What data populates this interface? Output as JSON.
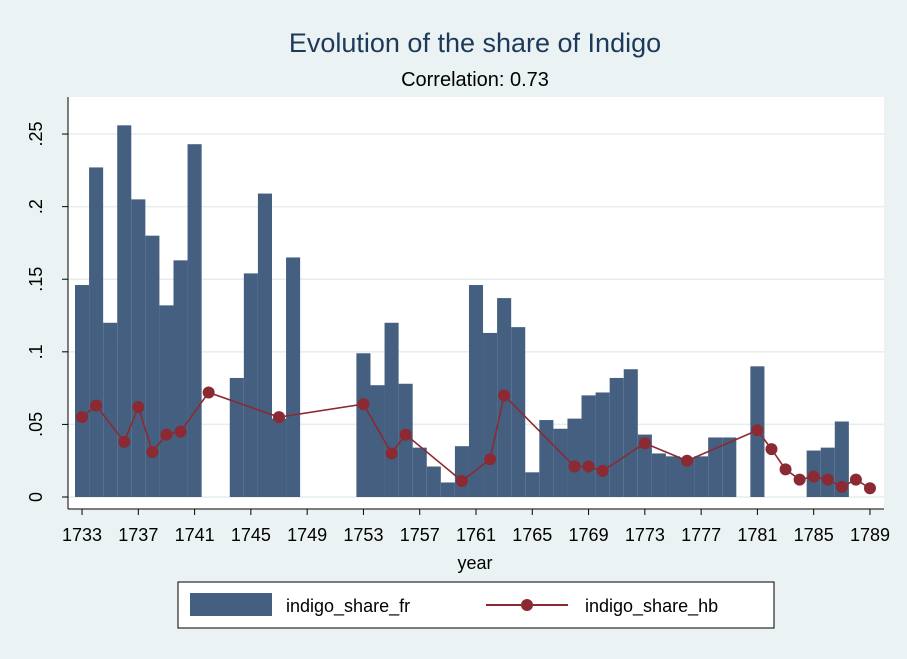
{
  "chart_data": {
    "type": "bar",
    "title": "Evolution of the share of Indigo",
    "subtitle": "Correlation: 0.73",
    "xlabel": "year",
    "ylabel": "",
    "xlim": [
      1732.5,
      1789.5
    ],
    "ylim": [
      0,
      0.27
    ],
    "x_ticks": [
      1733,
      1737,
      1741,
      1745,
      1749,
      1753,
      1757,
      1761,
      1765,
      1769,
      1773,
      1777,
      1781,
      1785,
      1789
    ],
    "x_tick_labels": [
      "1733",
      "1737",
      "1741",
      "1745",
      "1749",
      "1753",
      "1757",
      "1761",
      "1765",
      "1769",
      "1773",
      "1777",
      "1781",
      "1785",
      "1789"
    ],
    "y_ticks": [
      0,
      0.05,
      0.1,
      0.15,
      0.2,
      0.25
    ],
    "y_tick_labels": [
      "0",
      ".05",
      ".1",
      ".15",
      ".2",
      ".25"
    ],
    "grid": true,
    "legend_position": "bottom",
    "colors": {
      "bars": "#445f80",
      "line": "#8b2a32",
      "plot_bg": "#ffffff",
      "outer_bg": "#eaf2f3",
      "grid": "#e6eded",
      "title": "#1e3a5a"
    },
    "series": [
      {
        "name": "indigo_share_fr",
        "type": "bar",
        "points": [
          [
            1733,
            0.146
          ],
          [
            1734,
            0.227
          ],
          [
            1735,
            0.12
          ],
          [
            1736,
            0.256
          ],
          [
            1737,
            0.205
          ],
          [
            1738,
            0.18
          ],
          [
            1739,
            0.132
          ],
          [
            1740,
            0.163
          ],
          [
            1741,
            0.243
          ],
          [
            1744,
            0.082
          ],
          [
            1745,
            0.154
          ],
          [
            1746,
            0.209
          ],
          [
            1747,
            0.054
          ],
          [
            1748,
            0.165
          ],
          [
            1753,
            0.099
          ],
          [
            1754,
            0.077
          ],
          [
            1755,
            0.12
          ],
          [
            1756,
            0.078
          ],
          [
            1757,
            0.034
          ],
          [
            1758,
            0.021
          ],
          [
            1759,
            0.01
          ],
          [
            1760,
            0.035
          ],
          [
            1761,
            0.146
          ],
          [
            1762,
            0.113
          ],
          [
            1763,
            0.137
          ],
          [
            1764,
            0.117
          ],
          [
            1765,
            0.017
          ],
          [
            1766,
            0.053
          ],
          [
            1767,
            0.047
          ],
          [
            1768,
            0.054
          ],
          [
            1769,
            0.07
          ],
          [
            1770,
            0.072
          ],
          [
            1771,
            0.082
          ],
          [
            1772,
            0.088
          ],
          [
            1773,
            0.043
          ],
          [
            1774,
            0.03
          ],
          [
            1775,
            0.028
          ],
          [
            1776,
            0.027
          ],
          [
            1777,
            0.028
          ],
          [
            1778,
            0.041
          ],
          [
            1779,
            0.041
          ],
          [
            1781,
            0.09
          ],
          [
            1785,
            0.032
          ],
          [
            1786,
            0.034
          ],
          [
            1787,
            0.052
          ]
        ]
      },
      {
        "name": "indigo_share_hb",
        "type": "line",
        "points": [
          [
            1733,
            0.055
          ],
          [
            1734,
            0.063
          ],
          [
            1736,
            0.038
          ],
          [
            1737,
            0.062
          ],
          [
            1738,
            0.031
          ],
          [
            1739,
            0.043
          ],
          [
            1740,
            0.045
          ],
          [
            1742,
            0.072
          ],
          [
            1747,
            0.055
          ],
          [
            1753,
            0.064
          ],
          [
            1755,
            0.03
          ],
          [
            1756,
            0.043
          ],
          [
            1760,
            0.011
          ],
          [
            1762,
            0.026
          ],
          [
            1763,
            0.07
          ],
          [
            1768,
            0.021
          ],
          [
            1769,
            0.021
          ],
          [
            1770,
            0.018
          ],
          [
            1773,
            0.037
          ],
          [
            1776,
            0.025
          ],
          [
            1781,
            0.046
          ],
          [
            1782,
            0.033
          ],
          [
            1783,
            0.019
          ],
          [
            1784,
            0.012
          ],
          [
            1785,
            0.014
          ],
          [
            1786,
            0.012
          ],
          [
            1787,
            0.007
          ],
          [
            1788,
            0.012
          ],
          [
            1789,
            0.006
          ]
        ]
      }
    ]
  }
}
